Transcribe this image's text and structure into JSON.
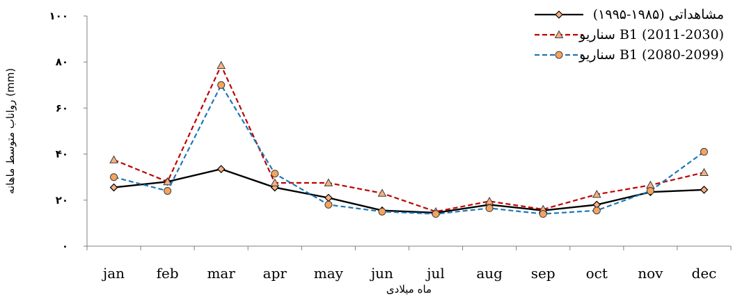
{
  "chart_data": {
    "type": "line",
    "title": "",
    "xlabel": "ماه میلادی",
    "ylabel": "رواناب متوسط ماهانه (mm)",
    "ylim": [
      0,
      100
    ],
    "yticks": [
      0,
      20,
      40,
      60,
      80,
      100
    ],
    "ytick_labels": [
      "۰",
      "۲۰",
      "۴۰",
      "۶۰",
      "۸۰",
      "۱۰۰"
    ],
    "categories": [
      "jan",
      "feb",
      "mar",
      "apr",
      "may",
      "jun",
      "jul",
      "aug",
      "sep",
      "oct",
      "nov",
      "dec"
    ],
    "grid": false,
    "legend_position": "top-right",
    "series": [
      {
        "name": "مشاهداتی (۱۹۸۵-۱۹۹۵)",
        "color": "#000000",
        "line_style": "solid",
        "marker": "diamond",
        "values": [
          25.5,
          28,
          33.5,
          25.5,
          21,
          15.5,
          14.5,
          18,
          15.5,
          18,
          23.5,
          24.5
        ]
      },
      {
        "name": "سناریو B1 (2011-2030)",
        "color": "#c00000",
        "line_style": "dashed",
        "marker": "triangle",
        "values": [
          37.5,
          28,
          78.5,
          27.5,
          27.5,
          23,
          15,
          19.5,
          16,
          22.5,
          26.5,
          32
        ]
      },
      {
        "name": "سناریو B1 (2080-2099)",
        "color": "#1f77b4",
        "line_style": "dashed",
        "marker": "circle",
        "values": [
          30,
          24,
          70,
          31.5,
          18,
          15,
          14,
          16.5,
          14,
          15.5,
          24,
          41
        ]
      }
    ]
  }
}
